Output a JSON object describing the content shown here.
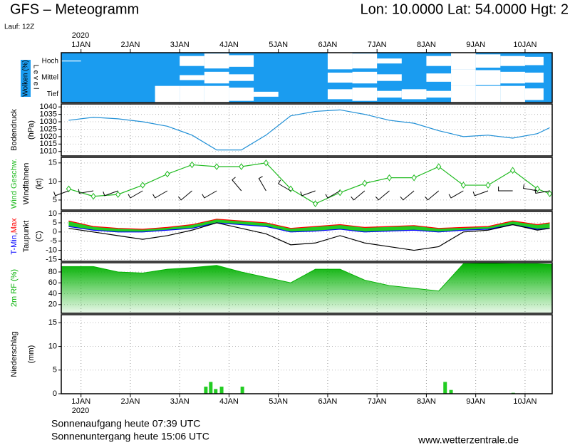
{
  "header": {
    "title": "GFS – Meteogramm",
    "location": "Lon: 10.0000 Lat: 54.0000 Hgt: 2",
    "run": "Lauf: 12Z"
  },
  "time_axis": {
    "year": "2020",
    "xlim": [
      0.6,
      10.55
    ],
    "grid": true,
    "xticks": [
      {
        "value": 1,
        "label": "1JAN"
      },
      {
        "value": 2,
        "label": "2JAN"
      },
      {
        "value": 3,
        "label": "3JAN"
      },
      {
        "value": 4,
        "label": "4JAN"
      },
      {
        "value": 5,
        "label": "5JAN"
      },
      {
        "value": 6,
        "label": "6JAN"
      },
      {
        "value": 7,
        "label": "7JAN"
      },
      {
        "value": 8,
        "label": "8JAN"
      },
      {
        "value": 9,
        "label": "9JAN"
      },
      {
        "value": 10,
        "label": "10JAN"
      }
    ]
  },
  "chart_data": [
    {
      "type": "band",
      "ylabel": "Wolken (%)",
      "axis_label": "L e v e l",
      "background": "#1a9cf0",
      "x": [
        0.75,
        1.25,
        1.75,
        2.25,
        2.75,
        3.25,
        3.75,
        4.25,
        4.75,
        5.25,
        5.75,
        6.25,
        6.75,
        7.25,
        7.75,
        8.25,
        8.75,
        9.25,
        9.75,
        10.25,
        10.5
      ],
      "series": [
        {
          "name": "Hoch",
          "color": "#ffffff",
          "values": [
            5,
            0,
            0,
            0,
            0,
            60,
            90,
            70,
            0,
            0,
            0,
            100,
            90,
            30,
            0,
            60,
            100,
            80,
            60,
            50,
            0
          ]
        },
        {
          "name": "Mittel",
          "color": "#ffffff",
          "values": [
            0,
            0,
            0,
            0,
            0,
            30,
            70,
            40,
            0,
            0,
            0,
            60,
            70,
            40,
            0,
            50,
            100,
            90,
            70,
            60,
            0
          ]
        },
        {
          "name": "Tief",
          "color": "#ffffff",
          "values": [
            0,
            0,
            0,
            0,
            100,
            100,
            100,
            80,
            30,
            0,
            0,
            60,
            80,
            40,
            60,
            40,
            100,
            100,
            100,
            70,
            0
          ]
        }
      ]
    },
    {
      "type": "line",
      "ylabel": [
        "Bodendruck",
        "(hPa)"
      ],
      "color": "#1f8fd6",
      "grid": true,
      "x": [
        0.75,
        1.25,
        1.75,
        2.25,
        2.75,
        3.25,
        3.75,
        4.25,
        4.75,
        5.25,
        5.75,
        6.25,
        6.75,
        7.25,
        7.75,
        8.25,
        8.75,
        9.25,
        9.75,
        10.25,
        10.5
      ],
      "values": [
        1031,
        1033,
        1032,
        1030,
        1027,
        1021,
        1011,
        1011,
        1021,
        1034,
        1037,
        1038,
        1035,
        1031,
        1029,
        1024,
        1020,
        1021,
        1019,
        1022,
        1026
      ],
      "ylim": [
        1007,
        1042
      ],
      "yticks": [
        1010,
        1015,
        1020,
        1025,
        1030,
        1035,
        1040
      ]
    },
    {
      "type": "line",
      "ylabel": "(kt)",
      "grid": true,
      "x": [
        0.75,
        1.25,
        1.75,
        2.25,
        2.75,
        3.25,
        3.75,
        4.25,
        4.75,
        5.25,
        5.75,
        6.25,
        6.75,
        7.25,
        7.75,
        8.25,
        8.75,
        9.25,
        9.75,
        10.25,
        10.5
      ],
      "series": [
        {
          "name": "Wind Geschw.",
          "color": "#22bb22",
          "marker": "diamond",
          "values": [
            8,
            6,
            6.5,
            9,
            12,
            14.5,
            14,
            14,
            15,
            8,
            4,
            7,
            9.5,
            11,
            11,
            14,
            9,
            9,
            13,
            8,
            6.7
          ]
        },
        {
          "name": "Windfahnen",
          "color": "#000000",
          "marker": "barb",
          "values": [
            250,
            260,
            250,
            240,
            240,
            230,
            240,
            320,
            330,
            300,
            250,
            240,
            230,
            230,
            230,
            230,
            240,
            250,
            270,
            280,
            260
          ]
        }
      ],
      "ylim": [
        2.3,
        16.5
      ],
      "yticks": [
        5,
        10,
        15
      ]
    },
    {
      "type": "line",
      "ylabel": "(C)",
      "series_separator": ",",
      "fill": "#22cc22",
      "grid": true,
      "x": [
        0.75,
        1.25,
        1.75,
        2.25,
        2.75,
        3.25,
        3.75,
        4.25,
        4.75,
        5.25,
        5.75,
        6.25,
        6.75,
        7.25,
        7.75,
        8.25,
        8.75,
        9.25,
        9.75,
        10.25,
        10.5
      ],
      "series": [
        {
          "name": "T-Min",
          "color": "#0000ff",
          "values": [
            3,
            1,
            0,
            0,
            1,
            2,
            5,
            4,
            3,
            0,
            0.5,
            1.5,
            0,
            0.5,
            1,
            0,
            1,
            1.5,
            4,
            1.5,
            2
          ]
        },
        {
          "name": "Max",
          "color": "#ff0000",
          "values": [
            6,
            3,
            2,
            1.5,
            2.5,
            4,
            7,
            6,
            5,
            2,
            3,
            4,
            2.5,
            3,
            3.5,
            2,
            2.5,
            3,
            6,
            4,
            5
          ]
        },
        {
          "name": "Taupunkt",
          "color": "#000000",
          "values": [
            2,
            0,
            -2,
            -4,
            -2,
            1,
            5,
            2,
            -1,
            -7,
            -6,
            -2,
            -6,
            -8,
            -10,
            -8,
            0,
            1,
            4,
            1,
            2
          ]
        }
      ],
      "ylim": [
        -16,
        11.2
      ],
      "yticks": [
        -15,
        -10,
        -5,
        0,
        5,
        10
      ]
    },
    {
      "type": "area",
      "ylabel": "2m RF (%)",
      "color": "#00b000",
      "grid": true,
      "x": [
        0.75,
        1.25,
        1.75,
        2.25,
        2.75,
        3.25,
        3.75,
        4.25,
        4.75,
        5.25,
        5.75,
        6.25,
        6.75,
        7.25,
        7.75,
        8.25,
        8.75,
        9.25,
        9.75,
        10.25,
        10.5
      ],
      "values": [
        90,
        90,
        80,
        78,
        85,
        88,
        92,
        80,
        70,
        60,
        85,
        85,
        65,
        55,
        50,
        45,
        95,
        96,
        95,
        95,
        94
      ],
      "ylim": [
        4,
        97
      ],
      "yticks": [
        20,
        40,
        60,
        80
      ]
    },
    {
      "type": "bar",
      "ylabel": [
        "Niederschlag",
        "(mm)"
      ],
      "color": "#22cc22",
      "grid": true,
      "x": [
        3.53,
        3.63,
        3.73,
        3.85,
        4.27,
        8.38,
        8.5,
        9.76
      ],
      "values": [
        1.5,
        2.5,
        1.0,
        1.5,
        1.5,
        2.5,
        0.8,
        0.2
      ],
      "ylim": [
        0,
        16.7
      ],
      "yticks": [
        0,
        5,
        10,
        15
      ]
    }
  ],
  "footer": {
    "sunrise": "Sonnenaufgang heute 07:39 UTC",
    "sunset": "Sonnenuntergang heute 15:06 UTC",
    "source": "www.wetterzentrale.de"
  }
}
